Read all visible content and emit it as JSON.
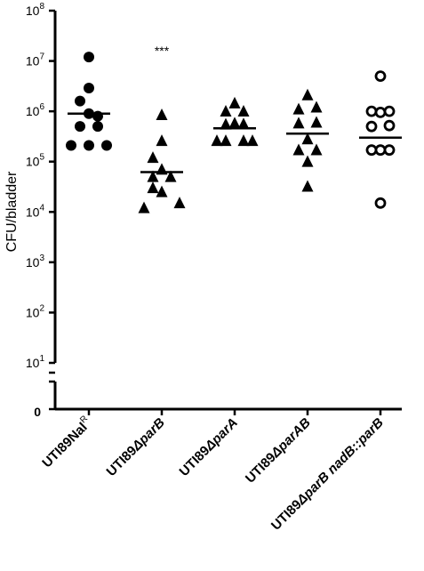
{
  "chart_data": {
    "type": "scatter",
    "ylabel": "CFU/bladder",
    "yscale": "log",
    "ylim": [
      10,
      100000000
    ],
    "y_ticks": [
      {
        "exp": 8,
        "base": "10",
        "sup": "8"
      },
      {
        "exp": 7,
        "base": "10",
        "sup": "7"
      },
      {
        "exp": 6,
        "base": "10",
        "sup": "6"
      },
      {
        "exp": 5,
        "base": "10",
        "sup": "5"
      },
      {
        "exp": 4,
        "base": "10",
        "sup": "4"
      },
      {
        "exp": 3,
        "base": "10",
        "sup": "3"
      },
      {
        "exp": 2,
        "base": "10",
        "sup": "2"
      },
      {
        "exp": 1,
        "base": "10",
        "sup": "1"
      }
    ],
    "y_break_label": "0",
    "categories": [
      {
        "prefix": "UTI89Nal",
        "sup": "R",
        "delta": "",
        "italic": ""
      },
      {
        "prefix": "UTI89",
        "sup": "",
        "delta": "Δ",
        "italic": "parB"
      },
      {
        "prefix": "UTI89",
        "sup": "",
        "delta": "Δ",
        "italic": "parA"
      },
      {
        "prefix": "UTI89",
        "sup": "",
        "delta": "Δ",
        "italic": "parAB"
      },
      {
        "prefix": "UTI89",
        "sup": "",
        "delta": "Δ",
        "italic": "parB nadB::parB"
      }
    ],
    "series": [
      {
        "marker": "filled-circle",
        "median": 900000,
        "points": [
          {
            "dx": 0,
            "y": 12000000
          },
          {
            "dx": 0,
            "y": 2900000
          },
          {
            "dx": -1,
            "y": 1600000
          },
          {
            "dx": 0,
            "y": 900000
          },
          {
            "dx": 1,
            "y": 800000
          },
          {
            "dx": -1,
            "y": 500000
          },
          {
            "dx": 1,
            "y": 500000
          },
          {
            "dx": -2,
            "y": 210000
          },
          {
            "dx": 0,
            "y": 210000
          },
          {
            "dx": 2,
            "y": 210000
          }
        ]
      },
      {
        "marker": "filled-triangle",
        "median": 62000,
        "significance": "***",
        "points": [
          {
            "dx": 0,
            "y": 850000
          },
          {
            "dx": 0,
            "y": 260000
          },
          {
            "dx": -1,
            "y": 120000
          },
          {
            "dx": 0,
            "y": 70000
          },
          {
            "dx": -1,
            "y": 50000
          },
          {
            "dx": 1,
            "y": 50000
          },
          {
            "dx": -1,
            "y": 30000
          },
          {
            "dx": 0,
            "y": 25000
          },
          {
            "dx": -2,
            "y": 12000
          },
          {
            "dx": 2,
            "y": 15000
          }
        ]
      },
      {
        "marker": "filled-triangle",
        "median": 460000,
        "points": [
          {
            "dx": 0,
            "y": 1450000
          },
          {
            "dx": -1,
            "y": 1000000
          },
          {
            "dx": 1,
            "y": 1000000
          },
          {
            "dx": -1,
            "y": 550000
          },
          {
            "dx": 0,
            "y": 580000
          },
          {
            "dx": 1,
            "y": 560000
          },
          {
            "dx": -2,
            "y": 260000
          },
          {
            "dx": -1,
            "y": 260000
          },
          {
            "dx": 1,
            "y": 260000
          },
          {
            "dx": 2,
            "y": 260000
          }
        ]
      },
      {
        "marker": "filled-triangle",
        "median": 360000,
        "points": [
          {
            "dx": 0,
            "y": 2100000
          },
          {
            "dx": -1,
            "y": 1100000
          },
          {
            "dx": 1,
            "y": 1200000
          },
          {
            "dx": -1,
            "y": 580000
          },
          {
            "dx": 1,
            "y": 600000
          },
          {
            "dx": 0,
            "y": 280000
          },
          {
            "dx": -1,
            "y": 170000
          },
          {
            "dx": 1,
            "y": 170000
          },
          {
            "dx": 0,
            "y": 100000
          },
          {
            "dx": 0,
            "y": 32000
          }
        ]
      },
      {
        "marker": "open-circle",
        "median": 300000,
        "points": [
          {
            "dx": 0,
            "y": 5000000
          },
          {
            "dx": -1,
            "y": 1000000
          },
          {
            "dx": 0,
            "y": 950000
          },
          {
            "dx": 1,
            "y": 1000000
          },
          {
            "dx": -1,
            "y": 500000
          },
          {
            "dx": 1,
            "y": 520000
          },
          {
            "dx": -1,
            "y": 170000
          },
          {
            "dx": 0,
            "y": 170000
          },
          {
            "dx": 1,
            "y": 170000
          },
          {
            "dx": 0,
            "y": 15000
          }
        ]
      }
    ]
  }
}
